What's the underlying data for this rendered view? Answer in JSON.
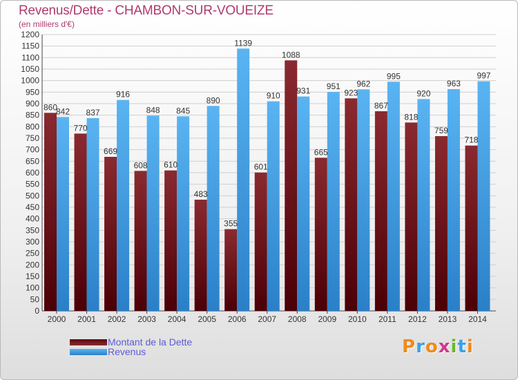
{
  "header": {
    "title": "Revenus/Dette - CHAMBON-SUR-VOUEIZE",
    "subtitle": "(en milliers d'€)"
  },
  "legend": [
    {
      "label": "Montant de la Dette",
      "color": "#6b1a22"
    },
    {
      "label": "Revenus",
      "color": "#3aa0e8"
    }
  ],
  "logo": {
    "text": "Proxiti"
  },
  "colors": {
    "title": "#b03a6e",
    "dette": "#7a1c24",
    "revenus": "#45a6ea",
    "legend_text": "#5b5bd6"
  },
  "chart_data": {
    "type": "bar",
    "title": "Revenus/Dette - CHAMBON-SUR-VOUEIZE",
    "subtitle": "(en milliers d'€)",
    "xlabel": "",
    "ylabel": "",
    "ylim": [
      0,
      1200
    ],
    "yticks": [
      0,
      50,
      100,
      150,
      200,
      250,
      300,
      350,
      400,
      450,
      500,
      550,
      600,
      650,
      700,
      750,
      800,
      850,
      900,
      950,
      1000,
      1050,
      1100,
      1150,
      1200
    ],
    "grid": true,
    "legend_position": "bottom-left",
    "categories": [
      "2000",
      "2001",
      "2002",
      "2003",
      "2004",
      "2005",
      "2006",
      "2007",
      "2008",
      "2009",
      "2010",
      "2011",
      "2012",
      "2013",
      "2014"
    ],
    "series": [
      {
        "name": "Montant de la Dette",
        "values": [
          860,
          770,
          669,
          608,
          610,
          483,
          355,
          601,
          1088,
          665,
          923,
          867,
          818,
          759,
          718
        ]
      },
      {
        "name": "Revenus",
        "values": [
          842,
          837,
          916,
          848,
          845,
          890,
          1139,
          910,
          931,
          951,
          962,
          995,
          920,
          963,
          997
        ]
      }
    ]
  }
}
